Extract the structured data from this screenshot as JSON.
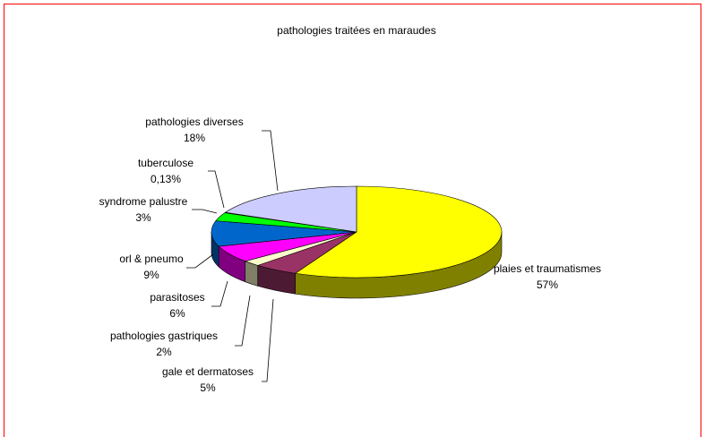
{
  "chart_data": {
    "type": "pie",
    "title": "pathologies traitées en maraudes",
    "categories": [
      "plaies et traumatismes",
      "gale et dermatoses",
      "pathologies gastriques",
      "parasitoses",
      "orl & pneumo",
      "syndrome palustre",
      "tuberculose",
      "pathologies diverses"
    ],
    "values": [
      57,
      5,
      2,
      6,
      9,
      3,
      0.13,
      18
    ],
    "value_labels": [
      "57%",
      "5%",
      "2%",
      "6%",
      "9%",
      "3%",
      "0,13%",
      "18%"
    ],
    "colors": [
      "#FFFF00",
      "#993366",
      "#FFFFCC",
      "#FF00FF",
      "#0066CC",
      "#00FF00",
      "#339966",
      "#CCCCFF"
    ]
  }
}
